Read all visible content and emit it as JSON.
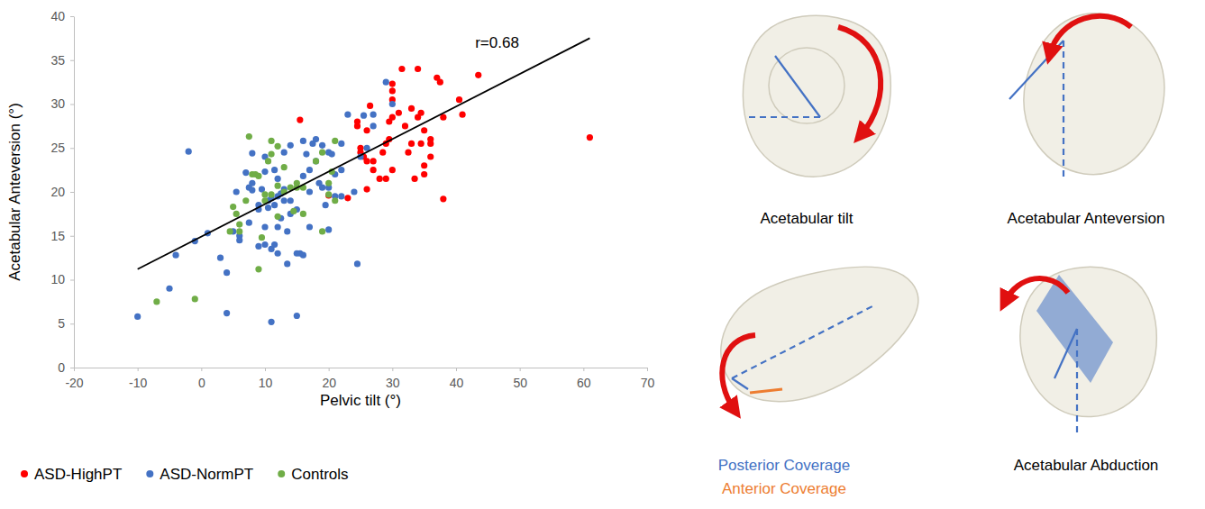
{
  "chart_data": {
    "type": "scatter",
    "x_label": "Pelvic tilt (°)",
    "y_label": "Acetabular Anteversion (°)",
    "xlim": [
      -20,
      70
    ],
    "ylim": [
      0,
      40
    ],
    "xticks": [
      -20,
      -10,
      0,
      10,
      20,
      30,
      40,
      50,
      60,
      70
    ],
    "yticks": [
      0,
      5,
      10,
      15,
      20,
      25,
      30,
      35,
      40
    ],
    "grid": false,
    "legend": "bottom",
    "annotations": [
      {
        "text": "r=0.68",
        "x": 43,
        "y": 37
      }
    ],
    "series": [
      {
        "name": "ASD-HighPT",
        "color": "#ff0000",
        "marker": "circle",
        "x": [
          15.5,
          20,
          23,
          24.5,
          24.5,
          25,
          25,
          25.5,
          26,
          26,
          26,
          27,
          27,
          28,
          28.5,
          29,
          29.5,
          29.5,
          30,
          30,
          30,
          30,
          30,
          31.5,
          32,
          33,
          33,
          33.5,
          34,
          34,
          34.5,
          34.5,
          35,
          35,
          35,
          36,
          36,
          36,
          37,
          37.5,
          38,
          38,
          40.5,
          41,
          43.5,
          61,
          26.5,
          31,
          29,
          32.5
        ],
        "values": [
          28.2,
          19.6,
          19.3,
          28,
          27.5,
          25,
          24.5,
          24,
          27,
          23.5,
          20.3,
          22.5,
          23.5,
          21.5,
          24.5,
          21.5,
          26,
          28,
          22.5,
          28.5,
          30.5,
          31.5,
          32.3,
          34,
          27.5,
          29.5,
          25.5,
          21.5,
          34,
          28.5,
          29,
          25.5,
          27,
          23,
          22,
          26,
          24,
          25.5,
          33,
          32.5,
          19.2,
          28.5,
          30.5,
          28.8,
          33.3,
          26.2,
          29.8,
          29,
          25.5,
          24.5
        ]
      },
      {
        "name": "ASD-NormPT",
        "color": "#4472c4",
        "marker": "circle",
        "x": [
          -10,
          -5,
          -4,
          -2,
          -1,
          1,
          3,
          4,
          4,
          5,
          5.5,
          6,
          6,
          7,
          7.5,
          7.5,
          8,
          8,
          9,
          9,
          9.5,
          10,
          10,
          10,
          10,
          10.5,
          10.5,
          11,
          11,
          11,
          11.5,
          11.5,
          11.5,
          12,
          12,
          12,
          12.5,
          12.5,
          13,
          13,
          13.5,
          13.5,
          14,
          14,
          15,
          15,
          15,
          15.5,
          16,
          16,
          16,
          16.5,
          17,
          17,
          17,
          17.5,
          18,
          18,
          18.5,
          19,
          19.5,
          20,
          20,
          20,
          20.5,
          21,
          22,
          22,
          22,
          23,
          24,
          24.5,
          25,
          25.5,
          26,
          27,
          27,
          29,
          30,
          13,
          14,
          12,
          21,
          19,
          9,
          8
        ],
        "values": [
          5.8,
          9,
          12.8,
          24.6,
          14.4,
          15.3,
          12.5,
          6.2,
          10.8,
          15.5,
          20,
          15,
          14.5,
          22.2,
          16.5,
          20.5,
          21,
          24.4,
          18,
          13.8,
          20.3,
          16,
          14,
          22.3,
          24,
          18.2,
          19,
          19.3,
          13.5,
          5.2,
          14,
          18.5,
          22.5,
          16,
          19.5,
          13,
          17,
          19.8,
          20.3,
          24.5,
          11.8,
          15.5,
          19,
          25.3,
          18,
          5.9,
          13,
          13,
          12.8,
          21.8,
          25.8,
          24.3,
          20,
          22.5,
          16,
          25.5,
          26,
          23.5,
          21,
          25.3,
          18.5,
          24.5,
          20.5,
          15.7,
          24.3,
          22,
          25.5,
          22.5,
          19.5,
          28.8,
          20,
          11.8,
          24,
          28.7,
          25,
          27.5,
          28.8,
          32.5,
          30,
          19,
          17.5,
          21.5,
          19.5,
          20.5,
          18.5,
          20.2
        ]
      },
      {
        "name": "Controls",
        "color": "#70ad47",
        "marker": "circle",
        "x": [
          -7,
          -1,
          4.5,
          5,
          5.5,
          6,
          6,
          7,
          7.5,
          8,
          8.5,
          9,
          9,
          9.5,
          10,
          10,
          10.5,
          11,
          11,
          11,
          12,
          12,
          12,
          13,
          13,
          14,
          14.5,
          15,
          15,
          16,
          16,
          18,
          19,
          20,
          20,
          20.5,
          21,
          21,
          19
        ],
        "values": [
          7.5,
          7.8,
          15.5,
          18.3,
          17.5,
          16.3,
          15.5,
          19,
          26.3,
          22,
          22,
          11.2,
          21.8,
          14.8,
          19,
          19.7,
          23.5,
          25.8,
          24.3,
          19.7,
          20.7,
          17.2,
          25.2,
          20,
          22.8,
          20.5,
          17.8,
          20.5,
          21,
          20.5,
          17.5,
          23.5,
          15.5,
          21,
          19.7,
          22.3,
          19,
          25.8,
          24.5
        ]
      },
      {
        "type": "line",
        "color": "#000000",
        "line_style": "solid",
        "x": [
          -10,
          61
        ],
        "values": [
          11.2,
          37.5
        ]
      }
    ]
  },
  "diagram": {
    "labels": [
      {
        "text": "Acetabular tilt",
        "color": "#000000"
      },
      {
        "text": "Acetabular Anteversion",
        "color": "#000000"
      },
      {
        "text": "Posterior Coverage",
        "color": "#4472c4"
      },
      {
        "text": "Anterior Coverage",
        "color": "#ed7d31"
      },
      {
        "text": "Acetabular Abduction",
        "color": "#000000"
      }
    ]
  }
}
